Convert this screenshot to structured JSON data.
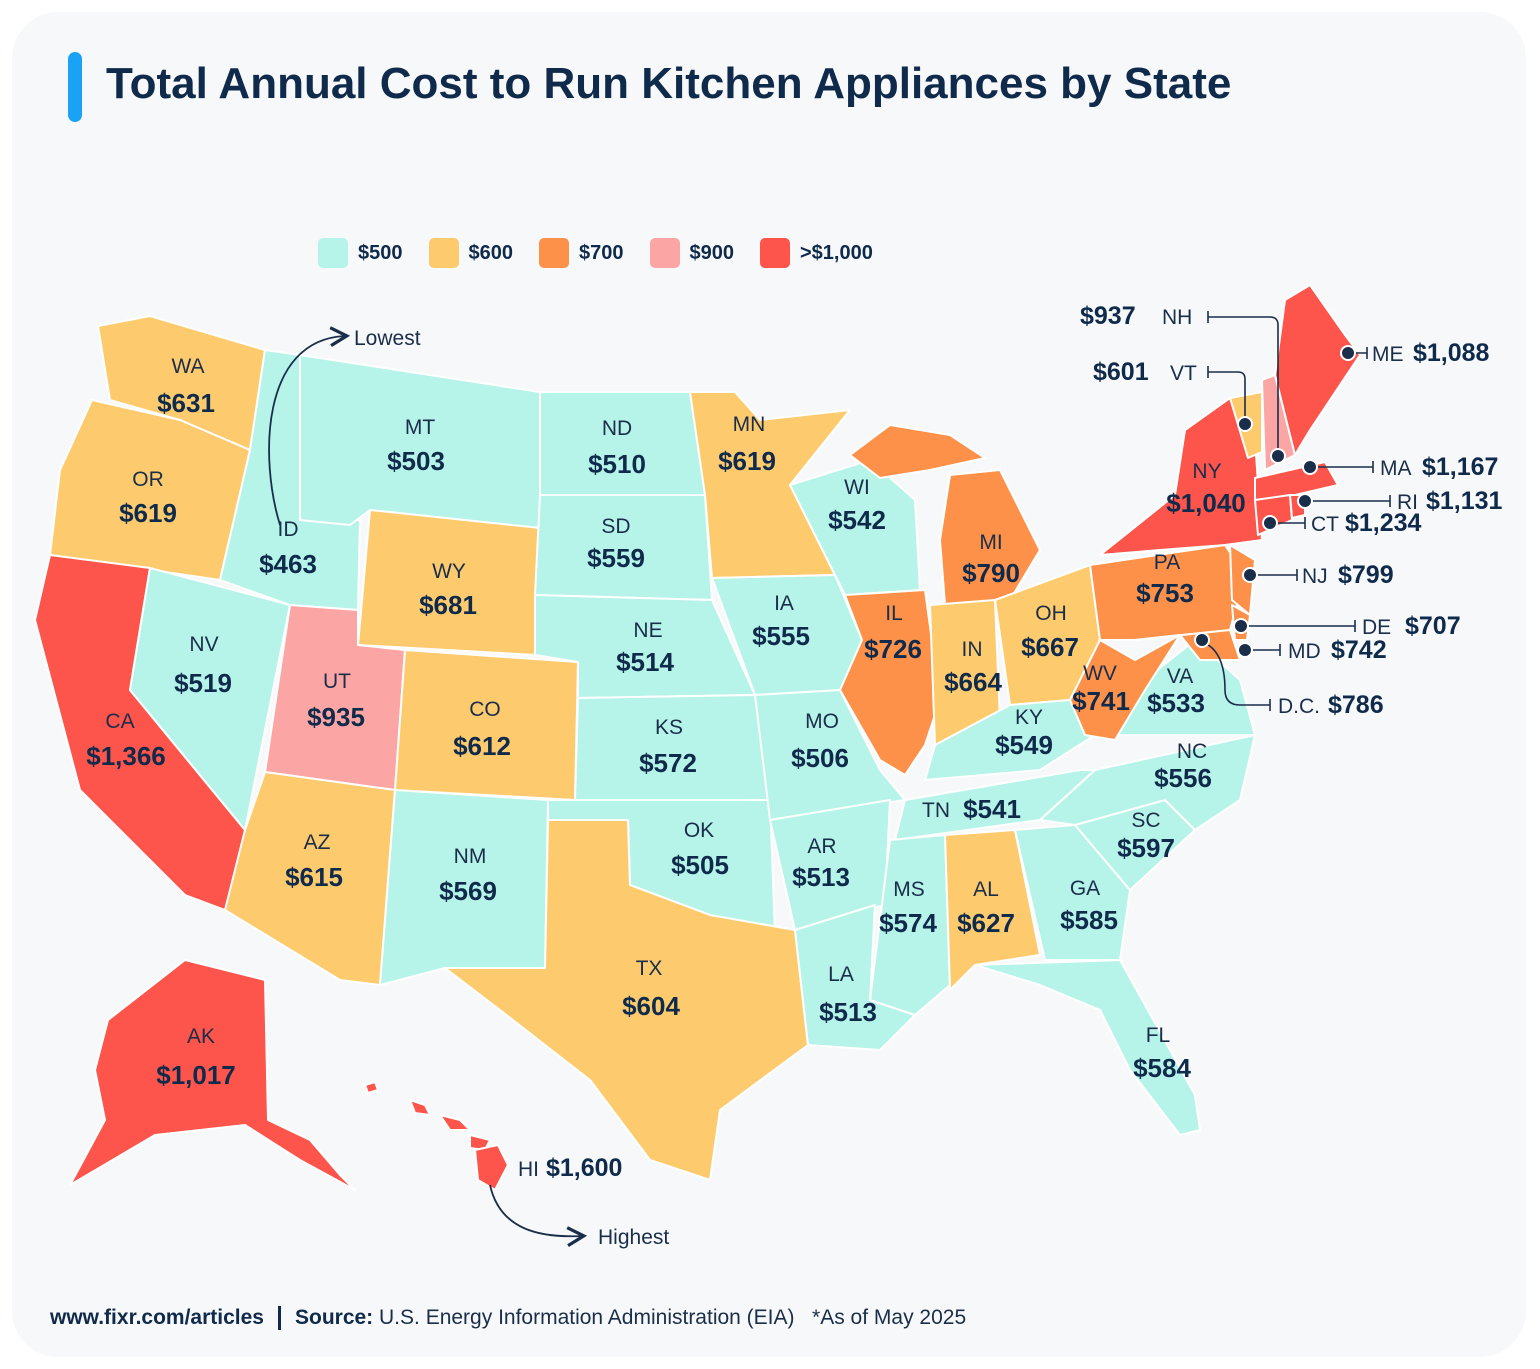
{
  "title": "Total Annual Cost to Run Kitchen Appliances by State",
  "legend": [
    {
      "label": "$500",
      "color": "#b6f3e9"
    },
    {
      "label": "$600",
      "color": "#fdcb6e"
    },
    {
      "label": "$700",
      "color": "#fd9149"
    },
    {
      "label": "$900",
      "color": "#fca5a5"
    },
    {
      "label": ">$1,000",
      "color": "#fd544b"
    }
  ],
  "annotations": {
    "lowest": "Lowest",
    "highest": "Highest"
  },
  "states": [
    {
      "abbr": "WA",
      "value": "$631",
      "tier": 1
    },
    {
      "abbr": "OR",
      "value": "$619",
      "tier": 1
    },
    {
      "abbr": "CA",
      "value": "$1,366",
      "tier": 4
    },
    {
      "abbr": "NV",
      "value": "$519",
      "tier": 0
    },
    {
      "abbr": "ID",
      "value": "$463",
      "tier": 0
    },
    {
      "abbr": "MT",
      "value": "$503",
      "tier": 0
    },
    {
      "abbr": "WY",
      "value": "$681",
      "tier": 1
    },
    {
      "abbr": "UT",
      "value": "$935",
      "tier": 3
    },
    {
      "abbr": "AZ",
      "value": "$615",
      "tier": 1
    },
    {
      "abbr": "CO",
      "value": "$612",
      "tier": 1
    },
    {
      "abbr": "NM",
      "value": "$569",
      "tier": 0
    },
    {
      "abbr": "ND",
      "value": "$510",
      "tier": 0
    },
    {
      "abbr": "SD",
      "value": "$559",
      "tier": 0
    },
    {
      "abbr": "NE",
      "value": "$514",
      "tier": 0
    },
    {
      "abbr": "KS",
      "value": "$572",
      "tier": 0
    },
    {
      "abbr": "OK",
      "value": "$505",
      "tier": 0
    },
    {
      "abbr": "TX",
      "value": "$604",
      "tier": 1
    },
    {
      "abbr": "MN",
      "value": "$619",
      "tier": 1
    },
    {
      "abbr": "IA",
      "value": "$555",
      "tier": 0
    },
    {
      "abbr": "MO",
      "value": "$506",
      "tier": 0
    },
    {
      "abbr": "AR",
      "value": "$513",
      "tier": 0
    },
    {
      "abbr": "LA",
      "value": "$513",
      "tier": 0
    },
    {
      "abbr": "WI",
      "value": "$542",
      "tier": 0
    },
    {
      "abbr": "IL",
      "value": "$726",
      "tier": 2
    },
    {
      "abbr": "MI",
      "value": "$790",
      "tier": 2
    },
    {
      "abbr": "IN",
      "value": "$664",
      "tier": 1
    },
    {
      "abbr": "OH",
      "value": "$667",
      "tier": 1
    },
    {
      "abbr": "KY",
      "value": "$549",
      "tier": 0
    },
    {
      "abbr": "TN",
      "value": "$541",
      "tier": 0
    },
    {
      "abbr": "MS",
      "value": "$574",
      "tier": 0
    },
    {
      "abbr": "AL",
      "value": "$627",
      "tier": 1
    },
    {
      "abbr": "GA",
      "value": "$585",
      "tier": 0
    },
    {
      "abbr": "FL",
      "value": "$584",
      "tier": 0
    },
    {
      "abbr": "SC",
      "value": "$597",
      "tier": 0
    },
    {
      "abbr": "NC",
      "value": "$556",
      "tier": 0
    },
    {
      "abbr": "VA",
      "value": "$533",
      "tier": 0
    },
    {
      "abbr": "WV",
      "value": "$741",
      "tier": 2
    },
    {
      "abbr": "PA",
      "value": "$753",
      "tier": 2
    },
    {
      "abbr": "NY",
      "value": "$1,040",
      "tier": 4
    },
    {
      "abbr": "AK",
      "value": "$1,017",
      "tier": 4
    },
    {
      "abbr": "HI",
      "value": "$1,600",
      "tier": 4
    },
    {
      "abbr": "NH",
      "value": "$937",
      "tier": 3
    },
    {
      "abbr": "VT",
      "value": "$601",
      "tier": 1
    },
    {
      "abbr": "ME",
      "value": "$1,088",
      "tier": 4
    },
    {
      "abbr": "MA",
      "value": "$1,167",
      "tier": 4
    },
    {
      "abbr": "RI",
      "value": "$1,131",
      "tier": 4
    },
    {
      "abbr": "CT",
      "value": "$1,234",
      "tier": 4
    },
    {
      "abbr": "NJ",
      "value": "$799",
      "tier": 2
    },
    {
      "abbr": "DE",
      "value": "$707",
      "tier": 2
    },
    {
      "abbr": "MD",
      "value": "$742",
      "tier": 2
    },
    {
      "abbr": "D.C.",
      "value": "$786",
      "tier": 2
    }
  ],
  "footer": {
    "url": "www.fixr.com/articles",
    "source_label": "Source:",
    "source_text": "U.S. Energy Information Administration (EIA)",
    "note": "*As of May 2025"
  }
}
